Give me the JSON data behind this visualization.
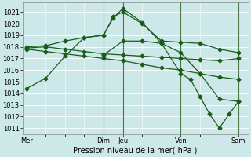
{
  "xlabel": "Pression niveau de la mer( hPa )",
  "background_color": "#cce8e8",
  "plot_bg_color": "#cce8e8",
  "grid_color": "#ffffff",
  "line_color": "#1a5c1a",
  "ylim": [
    1010.5,
    1021.8
  ],
  "yticks": [
    1011,
    1012,
    1013,
    1014,
    1015,
    1016,
    1017,
    1018,
    1019,
    1020,
    1021
  ],
  "xtick_labels": [
    "Mer",
    "Dim",
    "Jeu",
    "Ven",
    "Sam"
  ],
  "xtick_positions": [
    0,
    4,
    5,
    8,
    11
  ],
  "xlim": [
    -0.2,
    11.5
  ],
  "lines": [
    {
      "x": [
        0,
        1,
        2,
        3,
        4,
        4.5,
        5,
        6,
        7,
        8,
        9,
        10,
        11
      ],
      "y": [
        1014.4,
        1015.3,
        1017.2,
        1018.8,
        1019.0,
        1020.5,
        1021.3,
        1020.1,
        1018.3,
        1017.5,
        1015.7,
        1013.5,
        1013.3
      ],
      "marker": "D",
      "markersize": 2.5
    },
    {
      "x": [
        0,
        1,
        2,
        3,
        4,
        4.5,
        5,
        6,
        7,
        8,
        9,
        10,
        11
      ],
      "y": [
        1018.0,
        1018.1,
        1018.5,
        1018.8,
        1019.0,
        1020.6,
        1021.0,
        1020.0,
        1018.5,
        1018.4,
        1018.3,
        1017.8,
        1017.5
      ],
      "marker": "D",
      "markersize": 2.5
    },
    {
      "x": [
        0,
        1,
        2,
        3,
        4,
        5,
        6,
        7,
        8,
        9,
        10,
        11
      ],
      "y": [
        1017.9,
        1018.0,
        1017.8,
        1017.6,
        1017.4,
        1017.3,
        1017.2,
        1017.1,
        1017.0,
        1016.9,
        1016.8,
        1017.0
      ],
      "marker": "D",
      "markersize": 2.5
    },
    {
      "x": [
        0,
        1,
        2,
        3,
        4,
        5,
        6,
        7,
        8,
        9,
        10,
        11
      ],
      "y": [
        1017.8,
        1017.6,
        1017.4,
        1017.2,
        1017.0,
        1016.8,
        1016.5,
        1016.2,
        1016.0,
        1015.7,
        1015.4,
        1015.2
      ],
      "marker": "D",
      "markersize": 2.5
    },
    {
      "x": [
        4,
        5,
        6,
        7,
        8,
        8.5,
        9,
        9.5,
        10,
        10.5,
        11
      ],
      "y": [
        1017.3,
        1018.5,
        1018.5,
        1018.3,
        1015.7,
        1015.2,
        1013.7,
        1012.2,
        1011.0,
        1012.2,
        1013.3
      ],
      "marker": "D",
      "markersize": 2.5
    }
  ],
  "vline_positions": [
    4,
    5,
    8,
    11
  ],
  "vline_color": "#4a7a4a",
  "font_size_label": 7,
  "font_size_tick": 6
}
